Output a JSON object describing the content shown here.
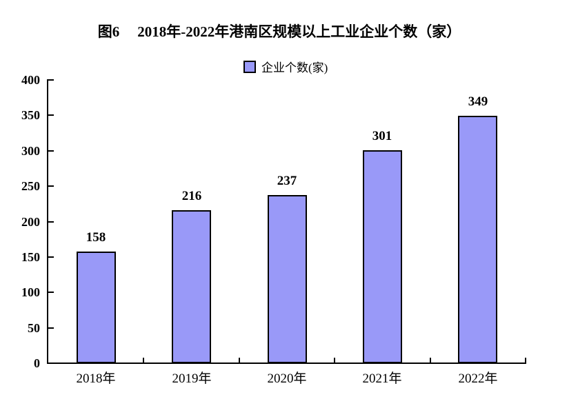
{
  "figure": {
    "fig_no": "图6",
    "title": "2018年-2022年港南区规模以上工业企业个数（家）"
  },
  "legend": {
    "label": "企业个数(家)"
  },
  "chart_data": {
    "type": "bar",
    "title": "图6 2018年-2022年港南区规模以上工业企业个数（家）",
    "legend": "企业个数(家)",
    "legend_position": "top",
    "categories": [
      "2018年",
      "2019年",
      "2020年",
      "2021年",
      "2022年"
    ],
    "values": [
      158,
      216,
      237,
      301,
      349
    ],
    "xlabel": "",
    "ylabel": "",
    "ylim": [
      0,
      400
    ],
    "ytick_step": 50,
    "grid": false,
    "colors": {
      "bar_fill": "#9999F8",
      "bar_border": "#000000",
      "axis": "#000000",
      "text": "#000000"
    }
  }
}
